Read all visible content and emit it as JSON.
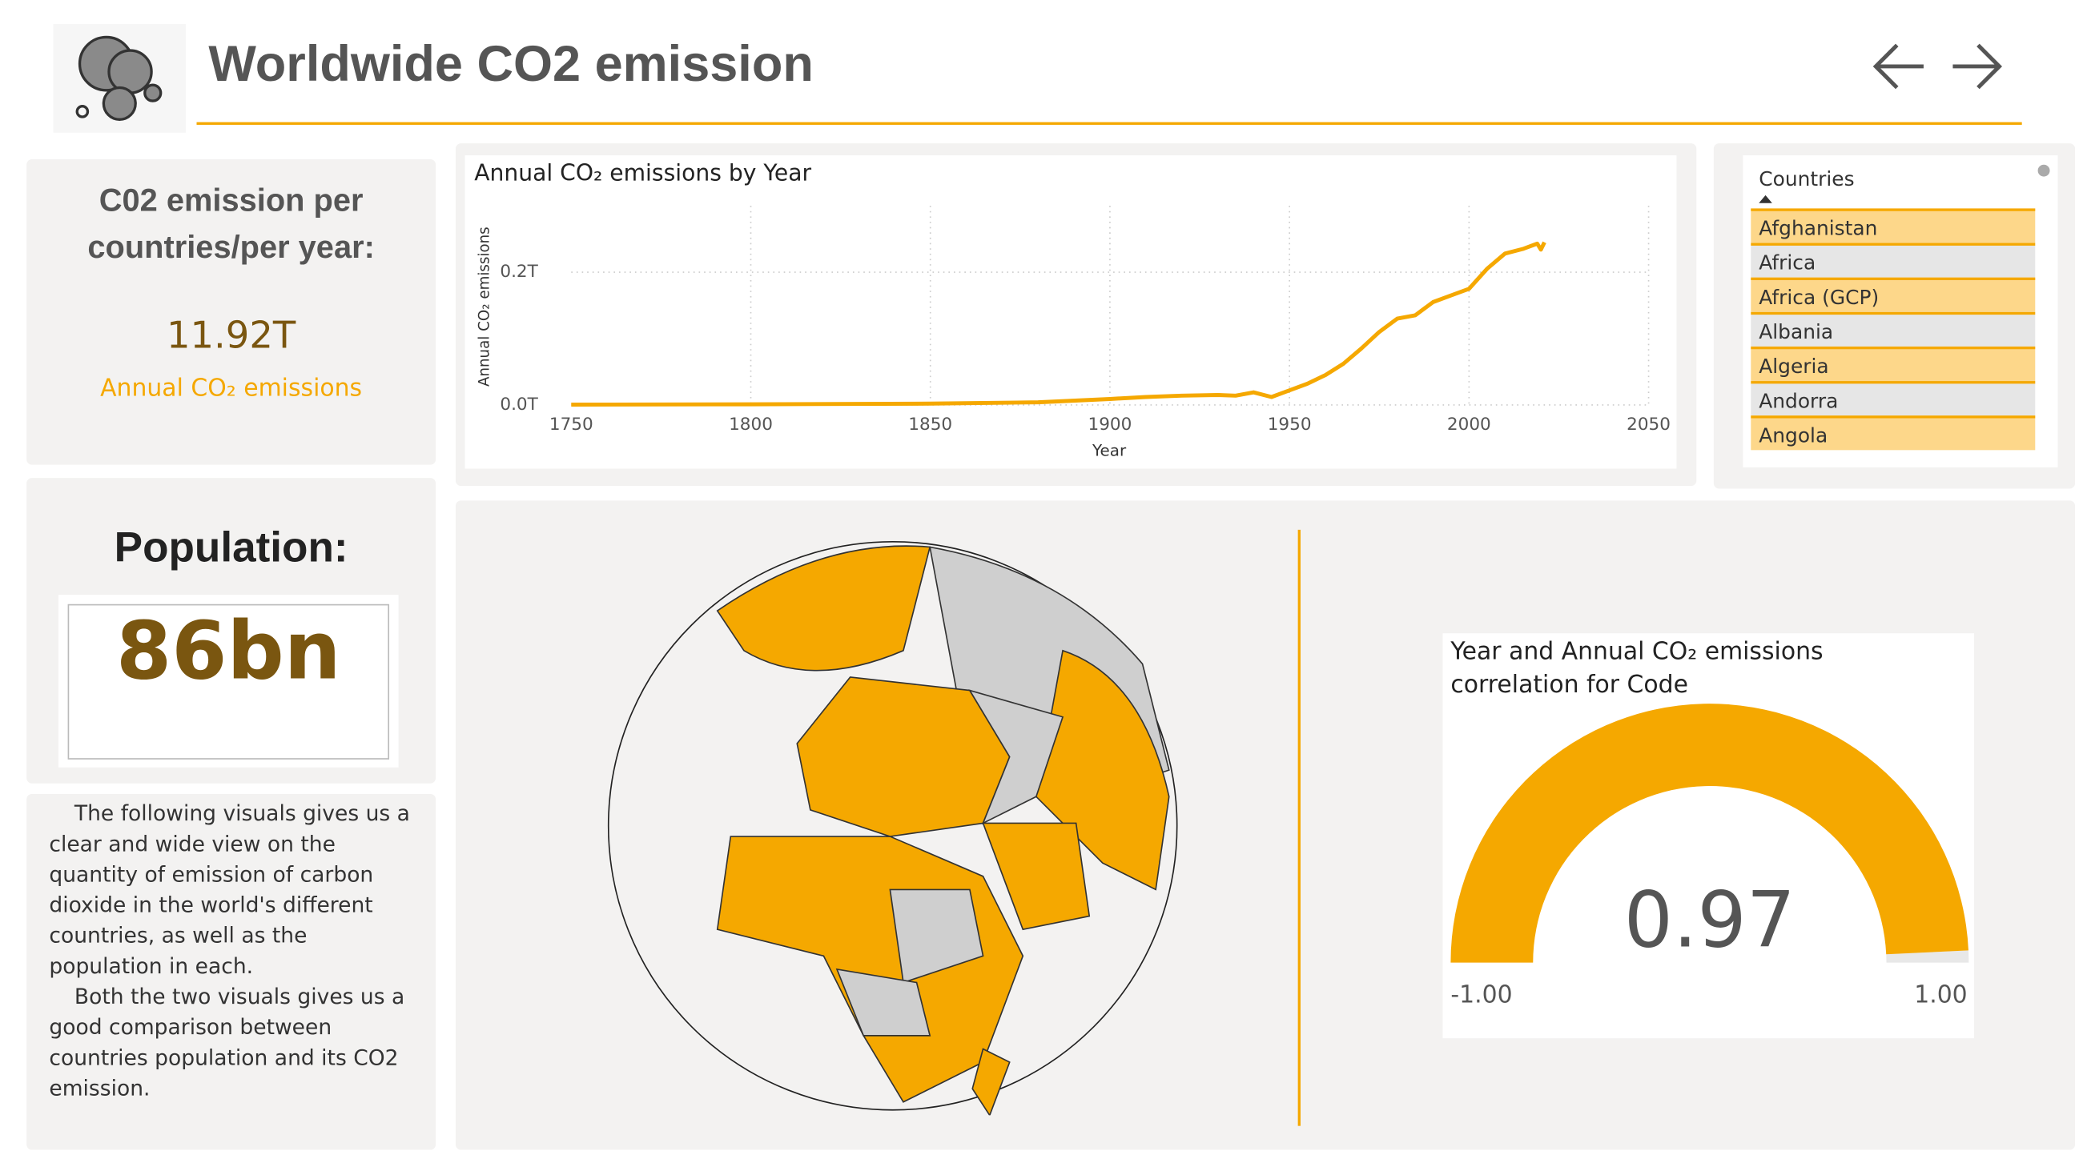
{
  "header": {
    "title": "Worldwide CO2 emission"
  },
  "kpi": {
    "title": "C02 emission per countries/per year:",
    "value": "11.92T",
    "label": "Annual CO₂ emissions"
  },
  "population": {
    "title": "Population:",
    "value": "86bn"
  },
  "description": {
    "paragraphs": [
      "The following visuals gives us a clear and wide view on the quantity of emission of carbon dioxide in the world's different countries, as well as the population in each.",
      "Both the two visuals gives us a good comparison between countries population and its CO2 emission."
    ]
  },
  "slicer": {
    "title": "Countries",
    "items": [
      "Afghanistan",
      "Africa",
      "Africa (GCP)",
      "Albania",
      "Algeria",
      "Andorra",
      "Angola"
    ]
  },
  "chart_data": [
    {
      "type": "line",
      "title": "Annual CO₂ emissions by Year",
      "x_label": "Year",
      "y_label": "Annual CO₂ emissions",
      "x": [
        1750,
        1800,
        1850,
        1880,
        1900,
        1910,
        1920,
        1930,
        1935,
        1940,
        1945,
        1950,
        1955,
        1960,
        1965,
        1970,
        1975,
        1980,
        1985,
        1990,
        1995,
        2000,
        2005,
        2010,
        2015,
        2019,
        2020,
        2021
      ],
      "values": [
        500000000.0,
        1000000000.0,
        2000000000.0,
        4000000000.0,
        9000000000.0,
        12000000000.0,
        14000000000.0,
        15000000000.0,
        14000000000.0,
        19000000000.0,
        12000000000.0,
        22000000000.0,
        32000000000.0,
        45000000000.0,
        62000000000.0,
        85000000000.0,
        110000000000.0,
        130000000000.0,
        135000000000.0,
        155000000000.0,
        165000000000.0,
        175000000000.0,
        205000000000.0,
        228000000000.0,
        235000000000.0,
        243000000000.0,
        234000000000.0,
        245000000000.0
      ],
      "color": "#f5a800",
      "xlim": [
        1750,
        2050
      ],
      "ylim": [
        0,
        300000000000.0
      ],
      "xticks": [
        1750,
        1800,
        1850,
        1900,
        1950,
        2000,
        2050
      ],
      "yticks": [
        {
          "value": 0,
          "label": "0.0T"
        },
        {
          "value": 200000000000.0,
          "label": "0.2T"
        }
      ],
      "grid": true
    },
    {
      "type": "gauge",
      "title": "Year and Annual CO₂ emissions correlation for Code",
      "value": 0.97,
      "min": {
        "value": -1,
        "label": "-1.00"
      },
      "max": {
        "value": 1,
        "label": "1.00"
      },
      "color": "#f5a800"
    }
  ]
}
